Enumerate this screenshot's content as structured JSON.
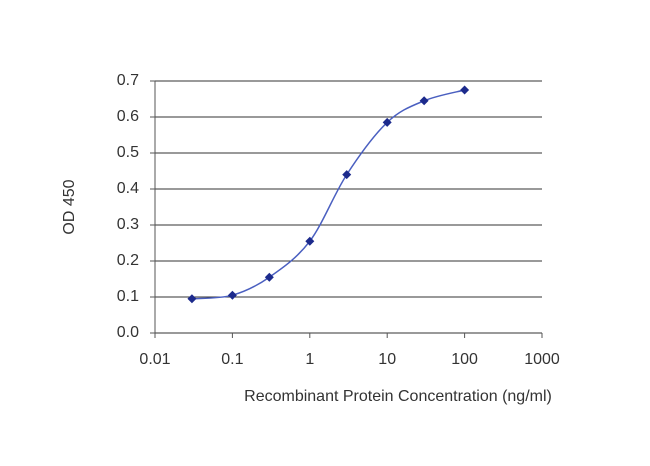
{
  "chart_data": {
    "type": "line",
    "x_label": "Recombinant Protein Concentration (ng/ml)",
    "y_label": "OD 450",
    "x": [
      0.03,
      0.1,
      0.3,
      1,
      3,
      10,
      30,
      100
    ],
    "series": [
      {
        "values": [
          0.095,
          0.105,
          0.155,
          0.255,
          0.44,
          0.585,
          0.645,
          0.675
        ],
        "color": "#1c2a8c",
        "line_color": "#4a5fc0"
      }
    ],
    "xlim": [
      0.01,
      1000
    ],
    "xticks": [
      0.01,
      0.1,
      1,
      10,
      100,
      1000
    ],
    "xscale": "log",
    "ylim": [
      0,
      0.7
    ],
    "yticks": [
      {
        "value": 0,
        "label": "0.0"
      },
      0.1,
      0.2,
      0.3,
      0.4,
      0.5,
      0.6,
      0.7
    ],
    "grid": true
  }
}
